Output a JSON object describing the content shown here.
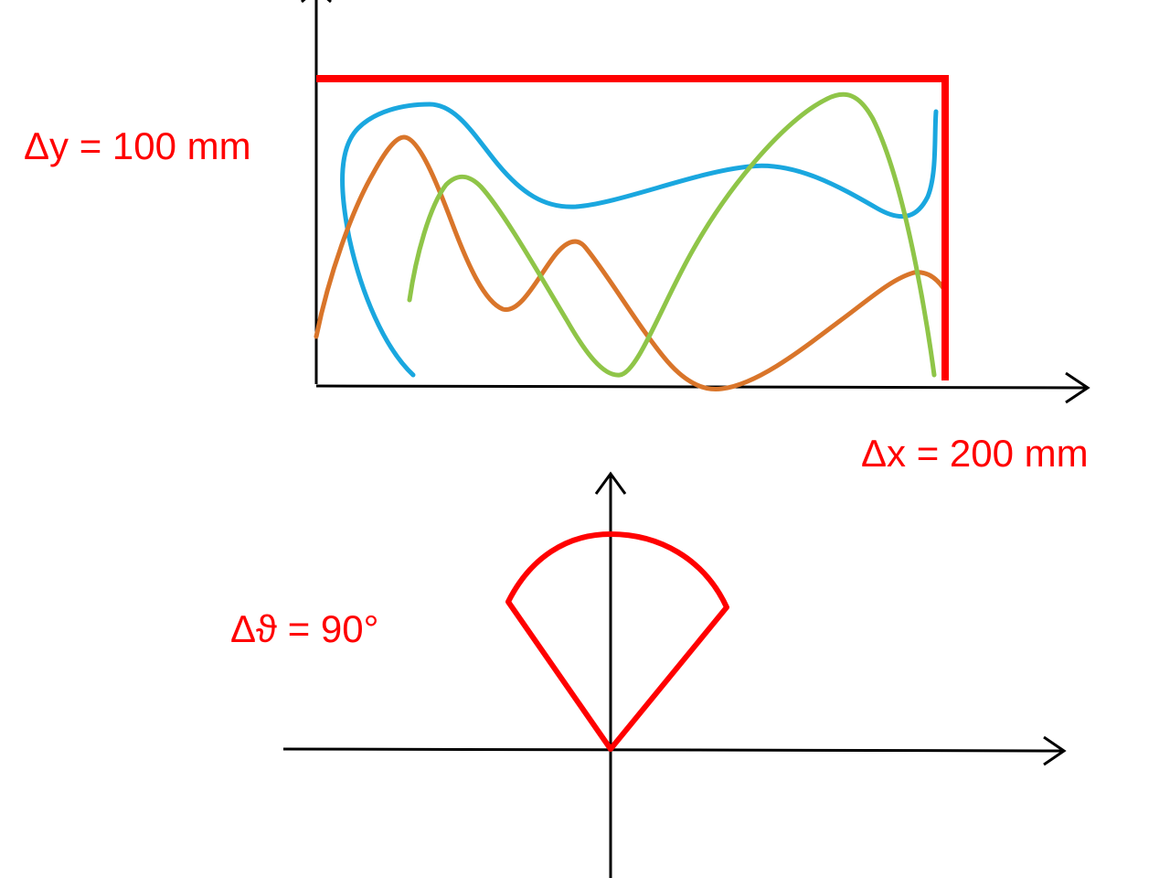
{
  "labels": {
    "delta_y": "Δy = 100 mm",
    "delta_x": "Δx = 200 mm",
    "delta_theta": "Δϑ = 90°"
  },
  "colors": {
    "axes": "#000000",
    "bounds": "#ff0000",
    "label": "#ff0000",
    "curve_blue": "#1aa7df",
    "curve_orange": "#d9752a",
    "curve_green": "#8fc548"
  }
}
